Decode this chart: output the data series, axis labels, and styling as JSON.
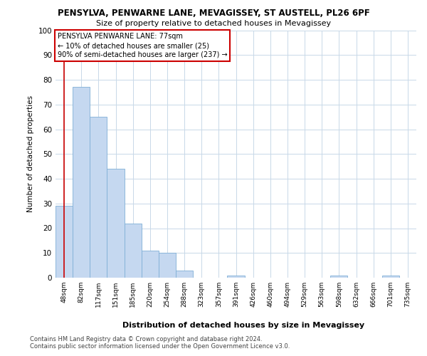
{
  "title_line1": "PENSYLVA, PENWARNE LANE, MEVAGISSEY, ST AUSTELL, PL26 6PF",
  "title_line2": "Size of property relative to detached houses in Mevagissey",
  "xlabel": "Distribution of detached houses by size in Mevagissey",
  "ylabel": "Number of detached properties",
  "footer_line1": "Contains HM Land Registry data © Crown copyright and database right 2024.",
  "footer_line2": "Contains public sector information licensed under the Open Government Licence v3.0.",
  "categories": [
    "48sqm",
    "82sqm",
    "117sqm",
    "151sqm",
    "185sqm",
    "220sqm",
    "254sqm",
    "288sqm",
    "323sqm",
    "357sqm",
    "391sqm",
    "426sqm",
    "460sqm",
    "494sqm",
    "529sqm",
    "563sqm",
    "598sqm",
    "632sqm",
    "666sqm",
    "701sqm",
    "735sqm"
  ],
  "values": [
    29,
    77,
    65,
    44,
    22,
    11,
    10,
    3,
    0,
    0,
    1,
    0,
    0,
    0,
    0,
    0,
    1,
    0,
    0,
    1,
    0
  ],
  "bar_color": "#c5d8f0",
  "bar_edge_color": "#7fafd6",
  "grid_color": "#c8d8e8",
  "background_color": "#ffffff",
  "plot_bg_color": "#ffffff",
  "annotation_box_text": "PENSYLVA PENWARNE LANE: 77sqm\n← 10% of detached houses are smaller (25)\n90% of semi-detached houses are larger (237) →",
  "annotation_box_color": "#ffffff",
  "annotation_box_edge_color": "#cc0000",
  "vline_color": "#cc0000",
  "ylim": [
    0,
    100
  ],
  "yticks": [
    0,
    10,
    20,
    30,
    40,
    50,
    60,
    70,
    80,
    90,
    100
  ]
}
